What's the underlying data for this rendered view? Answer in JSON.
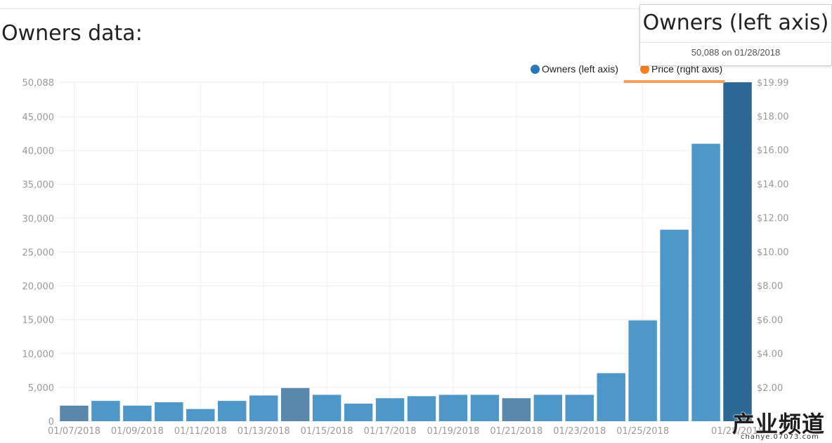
{
  "page": {
    "title": "Owners data:"
  },
  "tooltip": {
    "title": "Owners (left axis)",
    "value": "50,088 on 01/28/2018"
  },
  "legend": [
    {
      "label": "Owners (left axis)",
      "color": "#2878b8"
    },
    {
      "label": "Price (right axis)",
      "color": "#f7811e"
    }
  ],
  "watermark": {
    "main": "产业频道",
    "sub": "chanye.07073.com"
  },
  "chart_data": {
    "type": "bar",
    "categories": [
      "01/07/2018",
      "01/08/2018",
      "01/09/2018",
      "01/10/2018",
      "01/11/2018",
      "01/12/2018",
      "01/13/2018",
      "01/14/2018",
      "01/15/2018",
      "01/16/2018",
      "01/17/2018",
      "01/18/2018",
      "01/19/2018",
      "01/20/2018",
      "01/21/2018",
      "01/22/2018",
      "01/23/2018",
      "01/24/2018",
      "01/25/2018",
      "01/26/2018",
      "01/27/2018",
      "01/28/2018"
    ],
    "x_tick_labels": [
      "01/07/2018",
      "01/09/2018",
      "01/11/2018",
      "01/13/2018",
      "01/15/2018",
      "01/17/2018",
      "01/19/2018",
      "01/21/2018",
      "01/23/2018",
      "01/25/2018",
      "01/28/2018"
    ],
    "series": [
      {
        "name": "Owners (left axis)",
        "axis": "left",
        "color": "#2878b8",
        "values": [
          2300,
          3000,
          2300,
          2800,
          1800,
          3000,
          3800,
          4900,
          3900,
          2600,
          3400,
          3700,
          3900,
          3900,
          3400,
          3900,
          3900,
          7100,
          14900,
          28300,
          41000,
          50088
        ]
      },
      {
        "name": "Price (right axis)",
        "axis": "right",
        "color": "#f7811e",
        "values": [
          null,
          null,
          null,
          null,
          null,
          null,
          null,
          null,
          null,
          null,
          null,
          null,
          null,
          null,
          null,
          null,
          null,
          null,
          19.99,
          19.99,
          19.99,
          19.99
        ]
      }
    ],
    "highlighted": [
      "01/07/2018",
      "01/14/2018",
      "01/21/2018"
    ],
    "selected": "01/28/2018",
    "y_left": {
      "ticks": [
        "0",
        "5,000",
        "10,000",
        "15,000",
        "20,000",
        "25,000",
        "30,000",
        "35,000",
        "40,000",
        "45,000",
        "50,088"
      ],
      "ylim": [
        0,
        50088
      ]
    },
    "y_right": {
      "ticks": [
        "$2.00",
        "$4.00",
        "$6.00",
        "$8.00",
        "$10.00",
        "$12.00",
        "$14.00",
        "$16.00",
        "$18.00",
        "$19.99"
      ],
      "ylim": [
        0,
        19.99
      ]
    },
    "grid": true,
    "legend_position": "top-right"
  }
}
